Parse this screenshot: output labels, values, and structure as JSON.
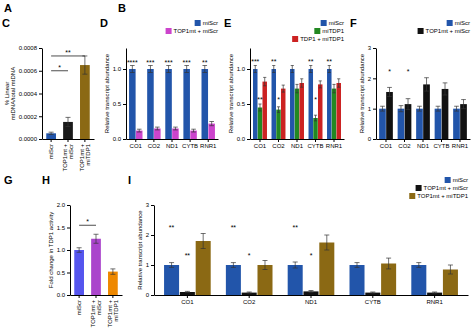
{
  "chart_data": [
    {
      "type": "bar",
      "title": "C",
      "categories": [
        "miScr",
        "TOP1mt +\nmiScr",
        "TOP1mt +\nmiTDP1"
      ],
      "values": [
        5e-05,
        0.00015,
        0.00065
      ],
      "errors": [
        1e-05,
        4e-05,
        8e-05
      ],
      "colors": [
        "#2255aa",
        "#1a1a1a",
        "#8B6914"
      ],
      "ylabel": "% Linear\nmtDNA/total mtDNA",
      "ylim": [
        0,
        0.0008
      ],
      "yticks": [
        {
          "value": 0,
          "label": "0.0000"
        },
        {
          "value": 0.0002,
          "label": "0.0002"
        },
        {
          "value": 0.0004,
          "label": "0.0004"
        },
        {
          "value": 0.0006,
          "label": "0.0006"
        },
        {
          "value": 0.0008,
          "label": "0.0008"
        }
      ],
      "annotations": [
        {
          "text": "**",
          "x1": 0,
          "x2": 2,
          "y": 0.00073
        },
        {
          "text": "*",
          "x1": 0,
          "x2": 1,
          "y": 0.0006
        }
      ]
    },
    {
      "type": "bar",
      "title": "D",
      "categories": [
        "CO1",
        "CO2",
        "ND1",
        "CYTB",
        "RNR1"
      ],
      "series": [
        {
          "name": "miScr",
          "color": "#2255aa",
          "values": [
            1.0,
            1.0,
            1.0,
            1.0,
            1.0
          ],
          "errors": [
            0.05,
            0.05,
            0.05,
            0.05,
            0.05
          ]
        },
        {
          "name": "TOP1mt + miScr",
          "color": "#cc44cc",
          "values": [
            0.12,
            0.15,
            0.15,
            0.12,
            0.22
          ],
          "errors": [
            0.02,
            0.02,
            0.02,
            0.02,
            0.03
          ]
        }
      ],
      "ylabel": "Relative transcript abundance",
      "ylim": [
        0,
        1.3
      ],
      "yticks": [
        {
          "value": 0,
          "label": "0.0"
        },
        0.5,
        {
          "value": 1,
          "label": "1.0"
        }
      ],
      "legend": "upper right",
      "annotations": [
        {
          "text": "****",
          "category": 0,
          "series": 0,
          "y": 1.05
        },
        {
          "text": "***",
          "category": 1,
          "series": 0,
          "y": 1.05
        },
        {
          "text": "***",
          "category": 2,
          "series": 0,
          "y": 1.05
        },
        {
          "text": "***",
          "category": 3,
          "series": 0,
          "y": 1.05
        },
        {
          "text": "**",
          "category": 4,
          "series": 0,
          "y": 1.05
        }
      ]
    },
    {
      "type": "bar",
      "title": "E",
      "categories": [
        "CO1",
        "CO2",
        "ND1",
        "CYTB",
        "RNR1"
      ],
      "series": [
        {
          "name": "miScr",
          "color": "#2255aa",
          "values": [
            1.0,
            1.0,
            1.0,
            1.0,
            1.0
          ],
          "errors": [
            0.05,
            0.05,
            0.05,
            0.05,
            0.05
          ]
        },
        {
          "name": "miTDP1",
          "color": "#228822",
          "values": [
            0.45,
            0.42,
            0.72,
            0.3,
            0.72
          ],
          "errors": [
            0.05,
            0.04,
            0.06,
            0.04,
            0.06
          ]
        },
        {
          "name": "TDP1 + miTDP1",
          "color": "#cc2222",
          "values": [
            0.82,
            0.72,
            0.8,
            0.78,
            0.8
          ],
          "errors": [
            0.06,
            0.05,
            0.06,
            0.05,
            0.06
          ]
        }
      ],
      "ylabel": "Relative transcript abundance",
      "ylim": [
        0,
        1.3
      ],
      "yticks": [
        {
          "value": 0,
          "label": "0.0"
        },
        0.5,
        {
          "value": 1,
          "label": "1.0"
        }
      ],
      "legend": "upper right",
      "annotations": [
        {
          "text": "***",
          "category": 0,
          "series": 0,
          "y": 1.06
        },
        {
          "text": "**",
          "category": 1,
          "series": 0,
          "y": 1.06
        },
        {
          "text": "**",
          "category": 3,
          "series": 0,
          "y": 1.06
        },
        {
          "text": "**",
          "category": 4,
          "series": 0,
          "y": 1.06
        },
        {
          "text": "**",
          "category": 0,
          "series": 1,
          "y": 0.52
        },
        {
          "text": "*",
          "category": 1,
          "series": 1,
          "y": 0.52
        },
        {
          "text": "*",
          "category": 3,
          "series": 1,
          "y": 0.52
        }
      ]
    },
    {
      "type": "bar",
      "title": "F",
      "categories": [
        "CO1",
        "CO2",
        "ND1",
        "CYTB",
        "RNR1"
      ],
      "series": [
        {
          "name": "miScr",
          "color": "#2255aa",
          "values": [
            1.0,
            1.0,
            1.0,
            1.0,
            1.0
          ],
          "errors": [
            0.08,
            0.1,
            0.08,
            0.08,
            0.08
          ]
        },
        {
          "name": "TOP1mt + miScr",
          "color": "#111111",
          "values": [
            1.55,
            1.15,
            1.8,
            1.65,
            1.15
          ],
          "errors": [
            0.15,
            0.18,
            0.22,
            0.2,
            0.15
          ]
        }
      ],
      "ylabel": "Relative transcript abundance",
      "ylim": [
        0,
        3.0
      ],
      "yticks": [
        0,
        1,
        2,
        3
      ],
      "legend": "upper right",
      "annotations": [
        {
          "text": "*",
          "category": 0,
          "series": 1,
          "y": 2.1
        },
        {
          "text": "*",
          "category": 1,
          "series": 1,
          "y": 2.1
        }
      ]
    },
    {
      "type": "bar",
      "title": "H",
      "categories": [
        "miScr",
        "TOP1mt +\nmiScr",
        "TOP1mt +\nmiTDP1"
      ],
      "values": [
        1.0,
        1.25,
        0.52
      ],
      "errors": [
        0.05,
        0.1,
        0.06
      ],
      "colors": [
        "#5555ee",
        "#aa44cc",
        "#ee8800"
      ],
      "ylabel": "Fold change in TDP1 activity",
      "ylim": [
        0,
        2.0
      ],
      "yticks": [
        {
          "value": 0,
          "label": "0.0"
        },
        0.5,
        {
          "value": 1,
          "label": "1.0"
        },
        1.5,
        {
          "value": 2,
          "label": "2.0"
        }
      ],
      "annotations": [
        {
          "text": "*",
          "x1": 0,
          "x2": 1,
          "y": 1.55
        }
      ]
    },
    {
      "type": "bar",
      "title": "I",
      "categories": [
        "CO1",
        "CO2",
        "ND1",
        "CYTB",
        "RNR1"
      ],
      "series": [
        {
          "name": "miScr",
          "color": "#2255aa",
          "values": [
            1.0,
            1.0,
            1.0,
            1.0,
            1.0
          ],
          "errors": [
            0.08,
            0.08,
            0.1,
            0.08,
            0.08
          ]
        },
        {
          "name": "TOP1mt + miScr",
          "color": "#111111",
          "values": [
            0.1,
            0.08,
            0.12,
            0.08,
            0.08
          ],
          "errors": [
            0.02,
            0.02,
            0.03,
            0.02,
            0.02
          ]
        },
        {
          "name": "TOP1mt + miTDP1",
          "color": "#8B6914",
          "values": [
            1.8,
            1.0,
            1.75,
            1.05,
            0.85
          ],
          "errors": [
            0.25,
            0.15,
            0.25,
            0.18,
            0.15
          ]
        }
      ],
      "ylabel": "Relative transcript abundance",
      "ylim": [
        0,
        3.0
      ],
      "yticks": [
        0,
        1,
        2,
        3
      ],
      "legend": "upper right",
      "annotations": [
        {
          "text": "**",
          "category": 0,
          "series": 0,
          "y": 2.15
        },
        {
          "text": "**",
          "category": 1,
          "series": 0,
          "y": 2.15
        },
        {
          "text": "**",
          "category": 2,
          "series": 0,
          "y": 2.15
        },
        {
          "text": "**",
          "category": 0,
          "series": 1,
          "y": 1.2
        },
        {
          "text": "*",
          "category": 1,
          "series": 1,
          "y": 1.2
        },
        {
          "text": "*",
          "category": 2,
          "series": 1,
          "y": 1.2
        }
      ]
    }
  ],
  "annotations": [
    "A",
    "B",
    "G"
  ]
}
